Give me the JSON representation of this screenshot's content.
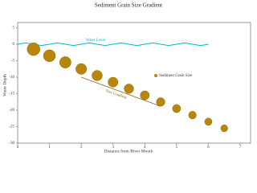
{
  "chart_data": {
    "type": "scatter",
    "title": "Sediment Grain Size Gradient",
    "x_label": "Distance from River Mouth",
    "y_label": "Water Depth",
    "xlim": [
      0,
      7
    ],
    "xticks": [
      0,
      1,
      2,
      3,
      4,
      5,
      6,
      7
    ],
    "ylim": [
      -30,
      5
    ],
    "yticks": [
      5,
      0,
      -5,
      -10,
      -15,
      -20,
      -25,
      -30
    ],
    "series": [
      {
        "name": "Sediment Grain Size",
        "color": "#b8860b",
        "x": [
          0.5,
          1,
          1.5,
          2,
          2.5,
          3,
          3.5,
          4,
          4.5,
          5,
          5.5,
          6,
          6.5
        ],
        "values": [
          -1.5,
          -3.5,
          -5.5,
          -7.5,
          -9.5,
          -11.5,
          -13.5,
          -15.5,
          -17.5,
          -19.5,
          -21.5,
          -23.5,
          -25.5
        ],
        "sizes": [
          100,
          88,
          80,
          72,
          66,
          60,
          55,
          50,
          45,
          41,
          37,
          33,
          30
        ]
      }
    ],
    "water_level": {
      "name": "Water Level",
      "color": "#00b4d8",
      "x": [
        0,
        0.25,
        0.5,
        0.75,
        1,
        1.25,
        1.5,
        1.75,
        2,
        2.25,
        2.5,
        2.75,
        3,
        3.25,
        3.5,
        3.75,
        4,
        4.25,
        4.5,
        4.75,
        5,
        5.25,
        5.5,
        5.75,
        6
      ],
      "values": [
        0,
        0.4,
        0,
        -0.4,
        0,
        0.4,
        0,
        -0.4,
        0,
        0.4,
        0,
        -0.4,
        0,
        0.4,
        0,
        -0.4,
        0,
        0.4,
        0,
        -0.4,
        0,
        0.4,
        0,
        -0.4,
        0
      ]
    },
    "gradient_label": "Size Gradient"
  }
}
